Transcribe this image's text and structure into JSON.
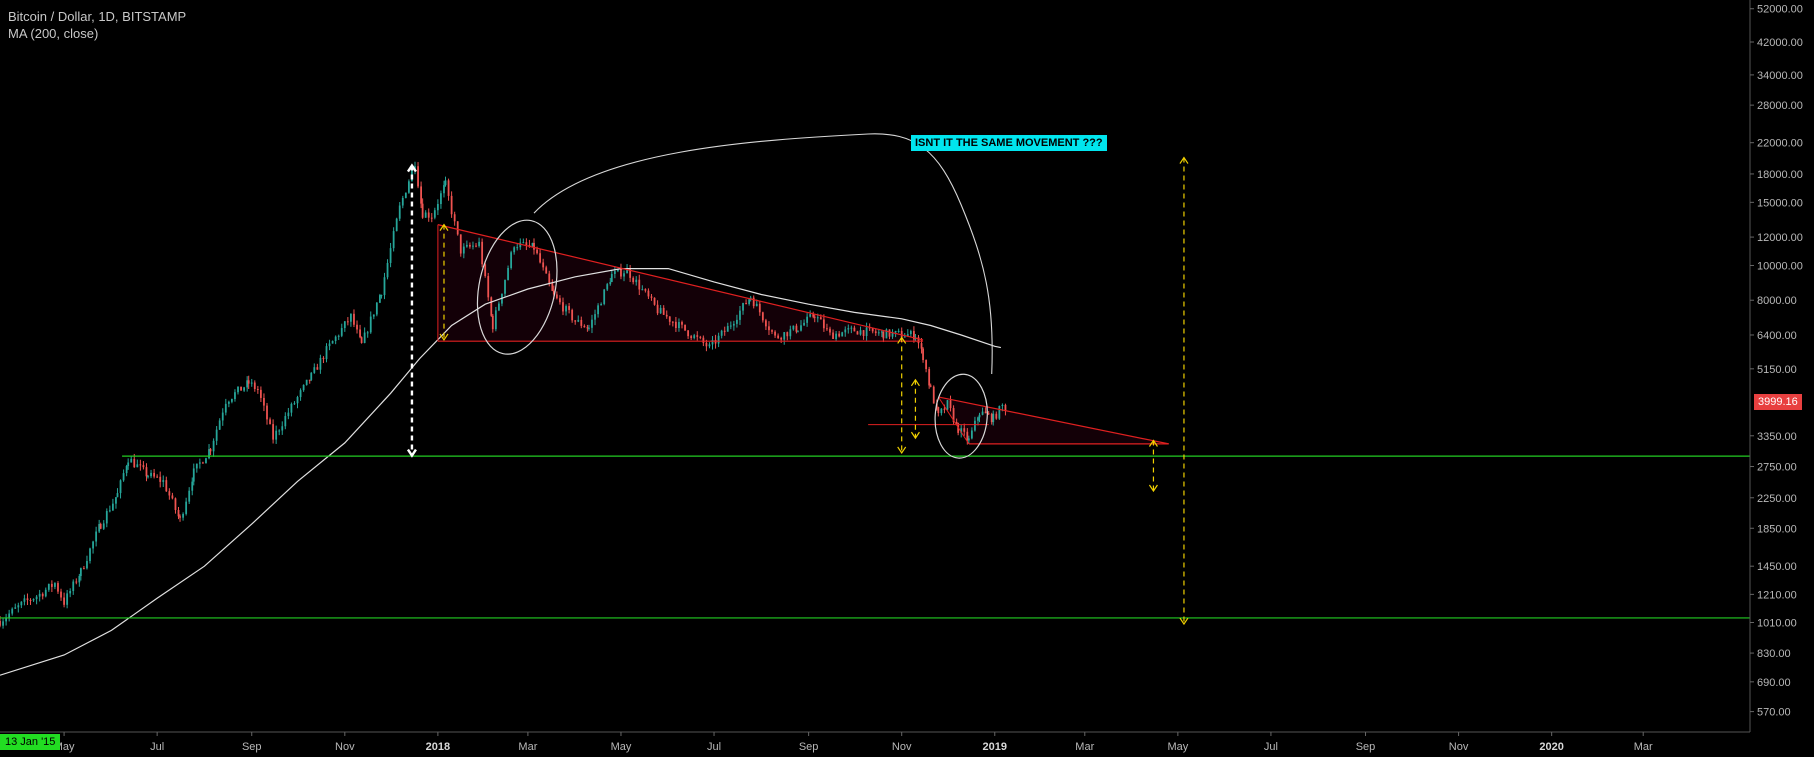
{
  "header": {
    "symbol_line": "Bitcoin / Dollar, 1D, BITSTAMP",
    "indicator_line": "MA (200, close)"
  },
  "annotation_text": "ISNT IT THE SAME MOVEMENT  ???",
  "last_price_label": "3999.16",
  "start_date_label": "13 Jan '15",
  "colors": {
    "background": "#000000",
    "candle_up": "#26a69a",
    "candle_down": "#ef5350",
    "ma_line": "#e0e0e0",
    "trendline": "#e02020",
    "support_line": "#22cc22",
    "arrow_yellow": "#f0d000",
    "callout_bg": "#00e5ee",
    "price_badge": "#e84040"
  },
  "chart_data": {
    "type": "line",
    "y_scale": "log",
    "y_range": [
      500,
      55000
    ],
    "x_range": [
      "2017-03-20",
      "2020-05-10"
    ],
    "y_ticks": [
      "52000.00",
      "42000.00",
      "34000.00",
      "28000.00",
      "22000.00",
      "18000.00",
      "15000.00",
      "12000.00",
      "10000.00",
      "8000.00",
      "6400.00",
      "5150.00",
      "3350.00",
      "2750.00",
      "2250.00",
      "1850.00",
      "1450.00",
      "1210.00",
      "1010.00",
      "830.00",
      "690.00",
      "570.00"
    ],
    "x_ticks": [
      {
        "label": "May",
        "date": "2017-05-01",
        "year": false
      },
      {
        "label": "Jul",
        "date": "2017-07-01",
        "year": false
      },
      {
        "label": "Sep",
        "date": "2017-09-01",
        "year": false
      },
      {
        "label": "Nov",
        "date": "2017-11-01",
        "year": false
      },
      {
        "label": "2018",
        "date": "2018-01-01",
        "year": true
      },
      {
        "label": "Mar",
        "date": "2018-03-01",
        "year": false
      },
      {
        "label": "May",
        "date": "2018-05-01",
        "year": false
      },
      {
        "label": "Jul",
        "date": "2018-07-01",
        "year": false
      },
      {
        "label": "Sep",
        "date": "2018-09-01",
        "year": false
      },
      {
        "label": "Nov",
        "date": "2018-11-01",
        "year": false
      },
      {
        "label": "2019",
        "date": "2019-01-01",
        "year": true
      },
      {
        "label": "Mar",
        "date": "2019-03-01",
        "year": false
      },
      {
        "label": "May",
        "date": "2019-05-01",
        "year": false
      },
      {
        "label": "Jul",
        "date": "2019-07-01",
        "year": false
      },
      {
        "label": "Sep",
        "date": "2019-09-01",
        "year": false
      },
      {
        "label": "Nov",
        "date": "2019-11-01",
        "year": false
      },
      {
        "label": "2020",
        "date": "2020-01-01",
        "year": true
      },
      {
        "label": "Mar",
        "date": "2020-03-01",
        "year": false
      }
    ],
    "price_path": [
      [
        "2017-03-20",
        1020
      ],
      [
        "2017-04-05",
        1150
      ],
      [
        "2017-04-15",
        1210
      ],
      [
        "2017-04-25",
        1300
      ],
      [
        "2017-05-01",
        1150
      ],
      [
        "2017-05-12",
        1400
      ],
      [
        "2017-05-25",
        1900
      ],
      [
        "2017-06-05",
        2300
      ],
      [
        "2017-06-12",
        2900
      ],
      [
        "2017-06-25",
        2600
      ],
      [
        "2017-07-05",
        2500
      ],
      [
        "2017-07-16",
        1950
      ],
      [
        "2017-07-25",
        2650
      ],
      [
        "2017-08-05",
        3100
      ],
      [
        "2017-08-15",
        4200
      ],
      [
        "2017-08-30",
        4700
      ],
      [
        "2017-09-05",
        4500
      ],
      [
        "2017-09-15",
        3300
      ],
      [
        "2017-09-25",
        3900
      ],
      [
        "2017-10-10",
        4900
      ],
      [
        "2017-10-20",
        5800
      ],
      [
        "2017-11-05",
        7200
      ],
      [
        "2017-11-12",
        6000
      ],
      [
        "2017-11-25",
        8500
      ],
      [
        "2017-12-07",
        14500
      ],
      [
        "2017-12-17",
        19500
      ],
      [
        "2017-12-22",
        14000
      ],
      [
        "2017-12-28",
        13800
      ],
      [
        "2018-01-06",
        16800
      ],
      [
        "2018-01-16",
        11000
      ],
      [
        "2018-01-28",
        11500
      ],
      [
        "2018-02-06",
        6800
      ],
      [
        "2018-02-20",
        11500
      ],
      [
        "2018-03-05",
        11200
      ],
      [
        "2018-03-18",
        8200
      ],
      [
        "2018-04-01",
        7000
      ],
      [
        "2018-04-10",
        6700
      ],
      [
        "2018-04-25",
        9400
      ],
      [
        "2018-05-05",
        9700
      ],
      [
        "2018-05-25",
        7500
      ],
      [
        "2018-06-10",
        6700
      ],
      [
        "2018-06-28",
        5900
      ],
      [
        "2018-07-10",
        6700
      ],
      [
        "2018-07-25",
        8200
      ],
      [
        "2018-08-10",
        6300
      ],
      [
        "2018-08-25",
        6700
      ],
      [
        "2018-09-05",
        7300
      ],
      [
        "2018-09-15",
        6400
      ],
      [
        "2018-10-01",
        6600
      ],
      [
        "2018-10-20",
        6450
      ],
      [
        "2018-11-10",
        6400
      ],
      [
        "2018-11-15",
        5600
      ],
      [
        "2018-11-20",
        4500
      ],
      [
        "2018-11-25",
        3800
      ],
      [
        "2018-12-01",
        4100
      ],
      [
        "2018-12-08",
        3500
      ],
      [
        "2018-12-15",
        3250
      ],
      [
        "2018-12-22",
        3900
      ],
      [
        "2018-12-31",
        3750
      ],
      [
        "2019-01-06",
        4050
      ],
      [
        "2019-01-09",
        3999.16
      ]
    ],
    "ma200_path": [
      [
        "2017-03-20",
        720
      ],
      [
        "2017-05-01",
        820
      ],
      [
        "2017-06-01",
        960
      ],
      [
        "2017-07-01",
        1180
      ],
      [
        "2017-08-01",
        1450
      ],
      [
        "2017-09-01",
        1900
      ],
      [
        "2017-10-01",
        2500
      ],
      [
        "2017-11-01",
        3200
      ],
      [
        "2017-12-01",
        4400
      ],
      [
        "2017-12-20",
        5500
      ],
      [
        "2018-01-10",
        6800
      ],
      [
        "2018-02-01",
        7800
      ],
      [
        "2018-03-01",
        8600
      ],
      [
        "2018-04-01",
        9300
      ],
      [
        "2018-05-01",
        9800
      ],
      [
        "2018-06-01",
        9800
      ],
      [
        "2018-07-01",
        9000
      ],
      [
        "2018-08-01",
        8300
      ],
      [
        "2018-09-01",
        7800
      ],
      [
        "2018-10-01",
        7400
      ],
      [
        "2018-11-01",
        7100
      ],
      [
        "2018-11-20",
        6800
      ],
      [
        "2018-12-10",
        6400
      ],
      [
        "2019-01-01",
        5950
      ],
      [
        "2019-01-05",
        5900
      ]
    ],
    "support_levels": [
      2940,
      1040
    ],
    "support_starts": [
      "2017-06-08",
      "2017-03-20"
    ],
    "triangles": [
      {
        "apex_top": [
          "2018-01-01",
          13000
        ],
        "apex_end": [
          "2018-11-15",
          6200
        ],
        "base_start": [
          "2018-01-01",
          6150
        ],
        "base_end": [
          "2018-11-15",
          6150
        ]
      },
      {
        "apex_top": [
          "2018-11-25",
          4300
        ],
        "apex_end": [
          "2019-04-25",
          3180
        ],
        "base_start": [
          "2018-12-15",
          3180
        ],
        "base_end": [
          "2019-04-25",
          3180
        ]
      }
    ]
  }
}
